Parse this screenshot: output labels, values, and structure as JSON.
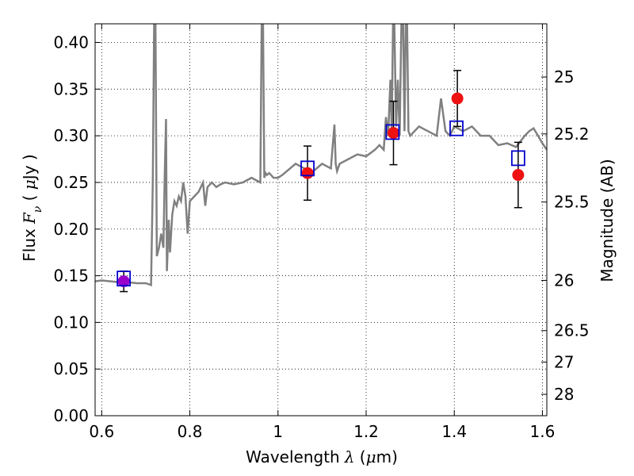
{
  "chart_data": {
    "type": "scatter",
    "xlabel": {
      "prefix": "Wavelength",
      "symbol": "λ",
      "unit_open": " (",
      "unit_mu": "μ",
      "unit_rest": "m)"
    },
    "ylabel": {
      "prefix": "Flux",
      "symbol": "F",
      "sub": "ν",
      "unit_open": " ( ",
      "unit_mu": "μ",
      "unit_rest": "Jy )"
    },
    "y2label": "Magnitude (AB)",
    "xlim": [
      0.585,
      1.61
    ],
    "ylim": [
      0.0,
      0.42
    ],
    "x_ticks": [
      {
        "value": 0.6,
        "label": "0.6"
      },
      {
        "value": 0.8,
        "label": "0.8"
      },
      {
        "value": 1.0,
        "label": "1"
      },
      {
        "value": 1.2,
        "label": "1.2"
      },
      {
        "value": 1.4,
        "label": "1.4"
      },
      {
        "value": 1.6,
        "label": "1.6"
      }
    ],
    "y_ticks": [
      {
        "value": 0.0,
        "label": "0.00"
      },
      {
        "value": 0.05,
        "label": "0.05"
      },
      {
        "value": 0.1,
        "label": "0.10"
      },
      {
        "value": 0.15,
        "label": "0.15"
      },
      {
        "value": 0.2,
        "label": "0.20"
      },
      {
        "value": 0.25,
        "label": "0.25"
      },
      {
        "value": 0.3,
        "label": "0.30"
      },
      {
        "value": 0.35,
        "label": "0.35"
      },
      {
        "value": 0.4,
        "label": "0.40"
      }
    ],
    "y2_ticks": [
      {
        "label": "25",
        "flux": 0.363
      },
      {
        "label": "25.2",
        "flux": 0.302
      },
      {
        "label": "25.5",
        "flux": 0.229
      },
      {
        "label": "26",
        "flux": 0.145
      },
      {
        "label": "26.5",
        "flux": 0.0912
      },
      {
        "label": "27",
        "flux": 0.0575
      },
      {
        "label": "28",
        "flux": 0.0229
      }
    ],
    "grid": true,
    "model_spectrum": {
      "color": "#808080",
      "x": [
        0.585,
        0.6,
        0.62,
        0.64,
        0.66,
        0.68,
        0.7,
        0.712,
        0.716,
        0.719,
        0.722,
        0.725,
        0.73,
        0.735,
        0.74,
        0.743,
        0.746,
        0.748,
        0.752,
        0.755,
        0.76,
        0.765,
        0.77,
        0.775,
        0.78,
        0.785,
        0.79,
        0.795,
        0.8,
        0.81,
        0.82,
        0.83,
        0.835,
        0.84,
        0.85,
        0.86,
        0.87,
        0.88,
        0.9,
        0.92,
        0.94,
        0.96,
        0.963,
        0.966,
        0.969,
        0.972,
        0.975,
        0.98,
        0.99,
        1.0,
        1.01,
        1.02,
        1.04,
        1.06,
        1.08,
        1.1,
        1.12,
        1.128,
        1.131,
        1.134,
        1.14,
        1.16,
        1.18,
        1.2,
        1.22,
        1.23,
        1.24,
        1.245,
        1.25,
        1.255,
        1.258,
        1.261,
        1.264,
        1.268,
        1.272,
        1.276,
        1.28,
        1.284,
        1.287,
        1.29,
        1.293,
        1.296,
        1.3,
        1.32,
        1.34,
        1.36,
        1.37,
        1.38,
        1.39,
        1.4,
        1.42,
        1.44,
        1.46,
        1.48,
        1.5,
        1.52,
        1.54,
        1.56,
        1.57,
        1.58,
        1.59,
        1.6,
        1.61
      ],
      "y": [
        0.144,
        0.145,
        0.144,
        0.143,
        0.143,
        0.142,
        0.142,
        0.14,
        0.25,
        0.42,
        0.42,
        0.171,
        0.18,
        0.195,
        0.18,
        0.26,
        0.318,
        0.155,
        0.21,
        0.175,
        0.215,
        0.23,
        0.225,
        0.235,
        0.23,
        0.25,
        0.235,
        0.195,
        0.23,
        0.235,
        0.24,
        0.25,
        0.225,
        0.245,
        0.25,
        0.245,
        0.248,
        0.25,
        0.248,
        0.25,
        0.255,
        0.25,
        0.42,
        0.42,
        0.255,
        0.26,
        0.258,
        0.26,
        0.255,
        0.255,
        0.258,
        0.262,
        0.27,
        0.265,
        0.262,
        0.27,
        0.265,
        0.312,
        0.27,
        0.262,
        0.27,
        0.275,
        0.28,
        0.278,
        0.285,
        0.29,
        0.285,
        0.32,
        0.3,
        0.36,
        0.305,
        0.42,
        0.42,
        0.31,
        0.36,
        0.3,
        0.42,
        0.42,
        0.305,
        0.42,
        0.42,
        0.305,
        0.3,
        0.31,
        0.305,
        0.3,
        0.34,
        0.305,
        0.3,
        0.31,
        0.305,
        0.31,
        0.3,
        0.3,
        0.29,
        0.292,
        0.288,
        0.3,
        0.305,
        0.308,
        0.3,
        0.292,
        0.285
      ]
    },
    "model_points": {
      "color": "#0000cc",
      "x": [
        0.65,
        1.067,
        1.26,
        1.405,
        1.545
      ],
      "y": [
        0.147,
        0.265,
        0.304,
        0.308,
        0.276
      ]
    },
    "observed_points": {
      "colors": [
        "#9900cc",
        "#ee1111",
        "#ee1111",
        "#ee1111",
        "#ee1111"
      ],
      "x": [
        0.65,
        1.067,
        1.262,
        1.407,
        1.545
      ],
      "y": [
        0.144,
        0.26,
        0.303,
        0.34,
        0.258
      ],
      "yerr": [
        0.011,
        0.029,
        0.034,
        0.03,
        0.035
      ]
    }
  }
}
